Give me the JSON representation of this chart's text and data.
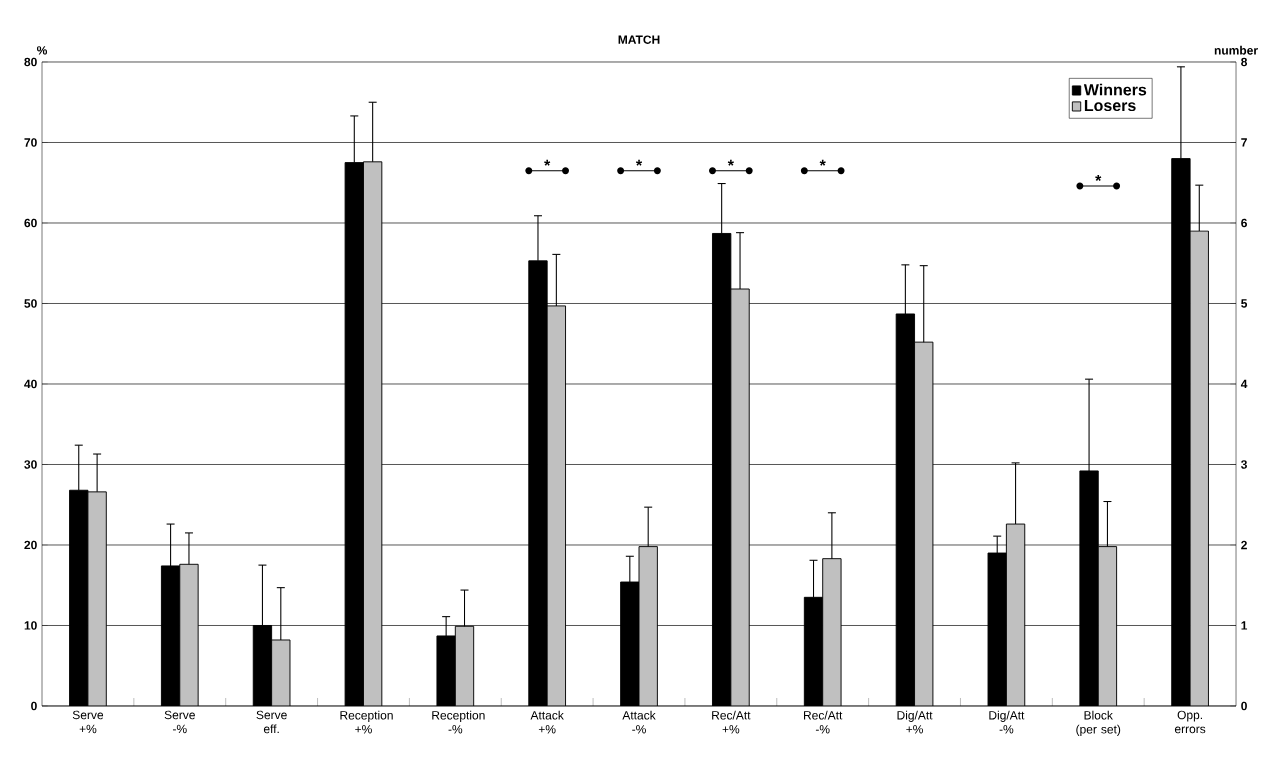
{
  "chart_data": {
    "type": "bar",
    "title": "MATCH",
    "ylabel": "%",
    "y2label": "number",
    "categories": [
      "Serve +%",
      "Serve -%",
      "Serve eff.",
      "Reception +%",
      "Reception -%",
      "Attack +%",
      "Attack -%",
      "Rec/Att +%",
      "Rec/Att -%",
      "Dig/Att +%",
      "Dig/Att -%",
      "Block (per set)",
      "Opp. errors"
    ],
    "series": [
      {
        "name": "Winners",
        "color": "#000000",
        "values": [
          26.8,
          17.4,
          10.0,
          67.5,
          8.7,
          55.3,
          15.4,
          58.7,
          13.5,
          48.7,
          19.0,
          null,
          null
        ],
        "errors": [
          [
            26.8,
            32.4
          ],
          [
            17.4,
            22.6
          ],
          [
            10.0,
            17.5
          ],
          [
            67.5,
            73.3
          ],
          [
            8.7,
            11.1
          ],
          [
            55.3,
            60.9
          ],
          [
            15.4,
            18.6
          ],
          [
            58.7,
            64.9
          ],
          [
            13.5,
            18.1
          ],
          [
            48.7,
            54.8
          ],
          [
            19.0,
            21.1
          ],
          null,
          null
        ]
      },
      {
        "name": "Losers",
        "color": "#c0c0c0",
        "values": [
          26.6,
          17.6,
          8.2,
          67.6,
          9.9,
          49.7,
          19.8,
          51.8,
          18.3,
          45.2,
          22.6,
          null,
          null
        ],
        "errors": [
          [
            26.6,
            31.3
          ],
          [
            17.6,
            21.5
          ],
          [
            8.2,
            14.7
          ],
          [
            67.6,
            75.0
          ],
          [
            9.9,
            14.4
          ],
          [
            49.7,
            56.1
          ],
          [
            19.8,
            24.7
          ],
          [
            51.8,
            58.8
          ],
          [
            18.3,
            24.0
          ],
          [
            45.2,
            54.7
          ],
          [
            22.6,
            30.2
          ],
          null,
          null
        ]
      },
      {
        "color": "#000000",
        "axis": "y2",
        "values": [
          null,
          null,
          null,
          null,
          null,
          null,
          null,
          null,
          null,
          null,
          null,
          2.92,
          6.8
        ],
        "errors": [
          null,
          null,
          null,
          null,
          null,
          null,
          null,
          null,
          null,
          null,
          null,
          [
            2.92,
            4.06
          ],
          [
            6.8,
            7.94
          ]
        ]
      },
      {
        "color": "#c0c0c0",
        "axis": "y2",
        "values": [
          null,
          null,
          null,
          null,
          null,
          null,
          null,
          null,
          null,
          null,
          null,
          1.98,
          5.9
        ],
        "errors": [
          null,
          null,
          null,
          null,
          null,
          null,
          null,
          null,
          null,
          null,
          null,
          [
            1.98,
            2.54
          ],
          [
            5.9,
            6.47
          ]
        ]
      }
    ],
    "ylim": [
      0,
      80
    ],
    "yticks": [
      0,
      10,
      20,
      30,
      40,
      50,
      60,
      70,
      80
    ],
    "y2lim": [
      0,
      8
    ],
    "y2ticks": [
      0,
      1,
      2,
      3,
      4,
      5,
      6,
      7,
      8
    ],
    "grid": "y",
    "legend": "top right",
    "annotations": [
      "*",
      "*",
      "*",
      "*",
      "*"
    ]
  }
}
